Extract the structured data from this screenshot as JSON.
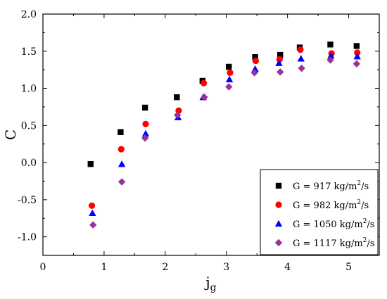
{
  "chart_data": {
    "type": "scatter",
    "xlabel": "j",
    "xlabel_subscript": "g",
    "ylabel": "C",
    "xlim": [
      0,
      5.5
    ],
    "ylim": [
      -1.25,
      2.0
    ],
    "xticks": [
      0,
      1,
      2,
      3,
      4,
      5
    ],
    "yticks": [
      -1.0,
      -0.5,
      0.0,
      0.5,
      1.0,
      1.5,
      2.0
    ],
    "xtick_labels": [
      "0",
      "1",
      "2",
      "3",
      "4",
      "5"
    ],
    "ytick_labels": [
      "-1.0",
      "-0.5",
      "0.0",
      "0.5",
      "1.0",
      "1.5",
      "2.0"
    ],
    "grid": false,
    "legend_position": "bottom-right",
    "series": [
      {
        "name_prefix": "G = 917 kg/m",
        "name_sup": "2",
        "name_suffix": "/s",
        "marker": "square",
        "color": "#000000",
        "x": [
          0.78,
          1.27,
          1.67,
          2.19,
          2.61,
          3.04,
          3.47,
          3.88,
          4.2,
          4.7,
          5.13
        ],
        "y": [
          -0.02,
          0.41,
          0.74,
          0.88,
          1.1,
          1.29,
          1.42,
          1.45,
          1.55,
          1.59,
          1.57
        ]
      },
      {
        "name_prefix": "G = 982 kg/m",
        "name_sup": "2",
        "name_suffix": "/s",
        "marker": "circle",
        "color": "#ff0000",
        "x": [
          0.8,
          1.28,
          1.68,
          2.22,
          2.63,
          3.06,
          3.48,
          3.87,
          4.21,
          4.72,
          5.14
        ],
        "y": [
          -0.58,
          0.18,
          0.52,
          0.7,
          1.07,
          1.21,
          1.37,
          1.39,
          1.52,
          1.47,
          1.48
        ]
      },
      {
        "name_prefix": "G = 1050 kg/m",
        "name_sup": "2",
        "name_suffix": "/s",
        "marker": "triangle",
        "color": "#0000ff",
        "x": [
          0.81,
          1.29,
          1.68,
          2.21,
          2.62,
          3.05,
          3.47,
          3.86,
          4.22,
          4.71,
          5.14
        ],
        "y": [
          -0.68,
          -0.02,
          0.39,
          0.61,
          0.88,
          1.12,
          1.26,
          1.34,
          1.4,
          1.44,
          1.43
        ]
      },
      {
        "name_prefix": "G = 1117 kg/m",
        "name_sup": "2",
        "name_suffix": "/s",
        "marker": "diamond",
        "color": "#993399",
        "x": [
          0.82,
          1.29,
          1.67,
          2.2,
          2.64,
          3.04,
          3.46,
          3.88,
          4.23,
          4.7,
          5.13
        ],
        "y": [
          -0.84,
          -0.26,
          0.33,
          0.64,
          0.88,
          1.02,
          1.21,
          1.22,
          1.27,
          1.38,
          1.33
        ]
      }
    ]
  }
}
